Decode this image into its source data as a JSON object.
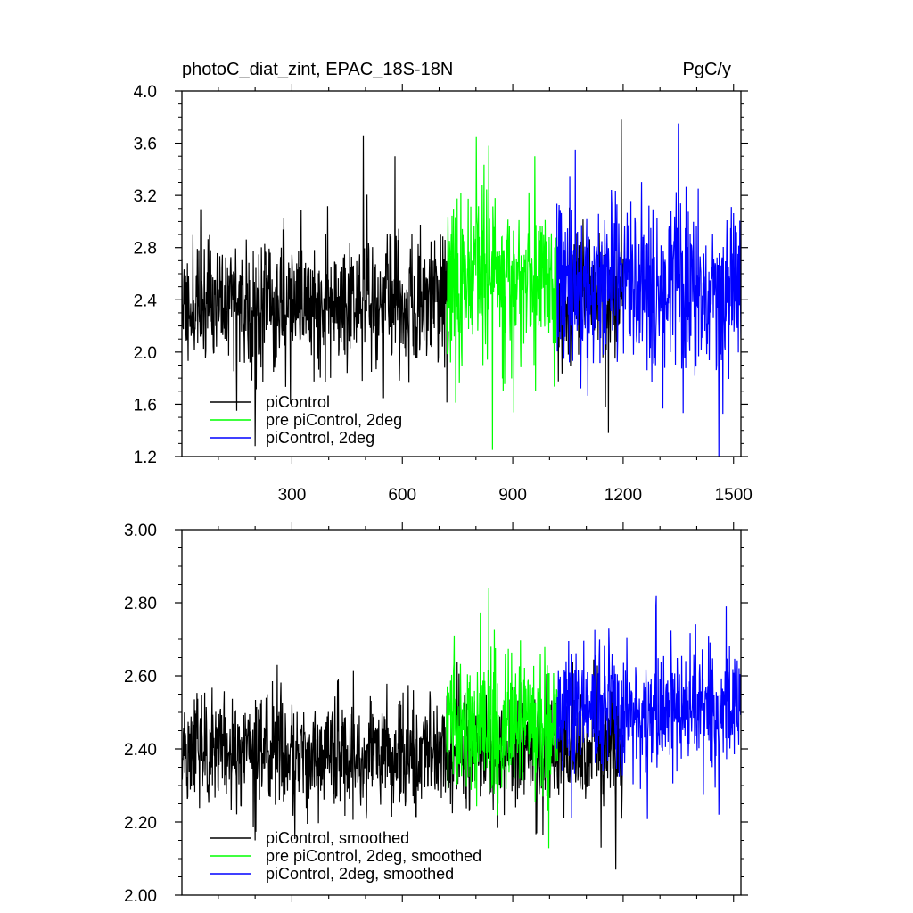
{
  "chart_data": [
    {
      "type": "line",
      "title": "photoC_diat_zint, EPAC_18S-18N",
      "units": "PgC/y",
      "xlabel": "",
      "ylabel": "",
      "xlim": [
        1,
        1520
      ],
      "ylim": [
        1.2,
        4.0
      ],
      "xticks": [
        300,
        600,
        900,
        1200,
        1500
      ],
      "xtick_labels": [
        "300",
        "600",
        "900",
        "1200",
        "1500"
      ],
      "yticks": [
        1.2,
        1.6,
        2.0,
        2.4,
        2.8,
        3.2,
        3.6,
        4.0
      ],
      "ytick_labels": [
        "1.2",
        "1.6",
        "2.0",
        "2.4",
        "2.8",
        "3.2",
        "3.6",
        "4.0"
      ],
      "grid": false,
      "legend_position": "bottom-left",
      "series": [
        {
          "name": "piControl",
          "color": "#000000",
          "x_range": [
            1,
            1200
          ],
          "mean": 2.38,
          "amplitude": 0.26,
          "seed": 11,
          "visible_x_ranges": [
            [
              1,
              725
            ],
            [
              1022,
              1200
            ]
          ],
          "peaks": [
            [
              494,
              3.66
            ],
            [
              580,
              3.5
            ],
            [
              1195,
              3.78
            ],
            [
              1160,
              1.38
            ],
            [
              150,
              1.55
            ],
            [
              200,
              1.28
            ]
          ]
        },
        {
          "name": "pre piControl, 2deg",
          "color": "#00ff00",
          "x_range": [
            720,
            1022
          ],
          "mean": 2.52,
          "amplitude": 0.32,
          "seed": 23,
          "peaks": [
            [
              835,
              3.58
            ],
            [
              845,
              1.25
            ],
            [
              960,
              3.5
            ]
          ]
        },
        {
          "name": "piControl, 2deg",
          "color": "#0000ff",
          "x_range": [
            1020,
            1520
          ],
          "mean": 2.53,
          "amplitude": 0.33,
          "seed": 37,
          "peaks": [
            [
              1350,
              3.75
            ],
            [
              1460,
              1.2
            ],
            [
              1070,
              3.55
            ]
          ]
        }
      ]
    },
    {
      "type": "line",
      "title": "",
      "units": "",
      "xlabel": "",
      "ylabel": "",
      "xlim": [
        1,
        1520
      ],
      "ylim": [
        2.0,
        3.0
      ],
      "xticks": [
        300,
        600,
        900,
        1200,
        1500
      ],
      "xtick_labels": [],
      "yticks": [
        2.0,
        2.2,
        2.4,
        2.6,
        2.8,
        3.0
      ],
      "ytick_labels": [
        "2.00",
        "2.20",
        "2.40",
        "2.60",
        "2.80",
        "3.00"
      ],
      "grid": false,
      "legend_position": "bottom-left",
      "series": [
        {
          "name": "piControl, smoothed",
          "color": "#000000",
          "x_range": [
            1,
            1200
          ],
          "mean": 2.39,
          "amplitude": 0.08,
          "seed": 51,
          "peaks": [
            [
              1180,
              2.07
            ],
            [
              1140,
              2.13
            ],
            [
              200,
              2.15
            ],
            [
              260,
              2.63
            ]
          ]
        },
        {
          "name": "pre piControl, 2deg, smoothed",
          "color": "#00ff00",
          "x_range": [
            720,
            1022
          ],
          "mean": 2.46,
          "amplitude": 0.1,
          "seed": 63,
          "peaks": [
            [
              835,
              2.84
            ],
            [
              880,
              2.66
            ],
            [
              860,
              2.25
            ]
          ]
        },
        {
          "name": "piControl, 2deg, smoothed",
          "color": "#0000ff",
          "x_range": [
            1020,
            1520
          ],
          "mean": 2.5,
          "amplitude": 0.09,
          "seed": 77,
          "peaks": [
            [
              1290,
              2.82
            ],
            [
              1480,
              2.79
            ],
            [
              1060,
              2.21
            ],
            [
              1460,
              2.22
            ]
          ]
        }
      ]
    }
  ]
}
